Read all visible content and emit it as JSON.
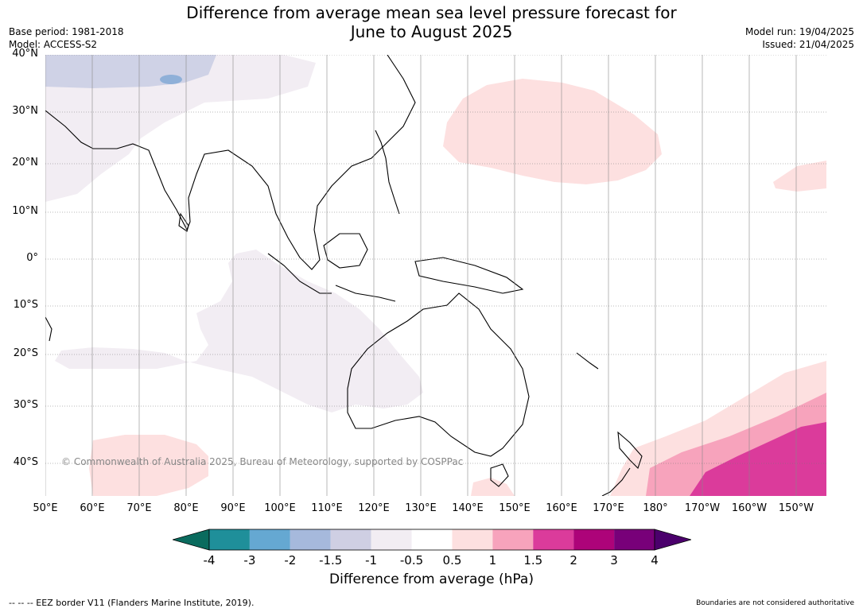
{
  "title_line1": "Difference from average mean sea level pressure forecast for",
  "title_line2": "June to August 2025",
  "meta_left": [
    "Base period: 1981-2018",
    "Model: ACCESS-S2"
  ],
  "meta_right": [
    "Model run: 19/04/2025",
    "Issued: 21/04/2025"
  ],
  "lat_labels": [
    "40°N",
    "30°N",
    "20°N",
    "10°N",
    "0°",
    "10°S",
    "20°S",
    "30°S",
    "40°S"
  ],
  "lon_labels": [
    "50°E",
    "60°E",
    "70°E",
    "80°E",
    "90°E",
    "100°E",
    "110°E",
    "120°E",
    "130°E",
    "140°E",
    "150°E",
    "160°E",
    "170°E",
    "180°",
    "170°W",
    "160°W",
    "150°W"
  ],
  "copyright": "© Commonwealth of Australia 2025, Bureau of Meteorology, supported by COSPPac",
  "colorbar": {
    "ticks": [
      "-4",
      "-3",
      "-2",
      "-1.5",
      "-1",
      "-0.5",
      "0.5",
      "1",
      "1.5",
      "2",
      "3",
      "4"
    ],
    "colors": [
      "#0a6b5e",
      "#1f8f9a",
      "#65a8d2",
      "#a6b9dc",
      "#cfcfe3",
      "#f2edf3",
      "#ffffff",
      "#fde0e0",
      "#f7a3bc",
      "#db3b9b",
      "#ad0379",
      "#780079",
      "#4b006c"
    ],
    "label": "Difference from average (hPa)"
  },
  "footer_left": "--  --  -- EEZ border V11 (Flanders Marine Institute, 2019).",
  "footer_right": "Boundaries are not considered authoritative"
}
